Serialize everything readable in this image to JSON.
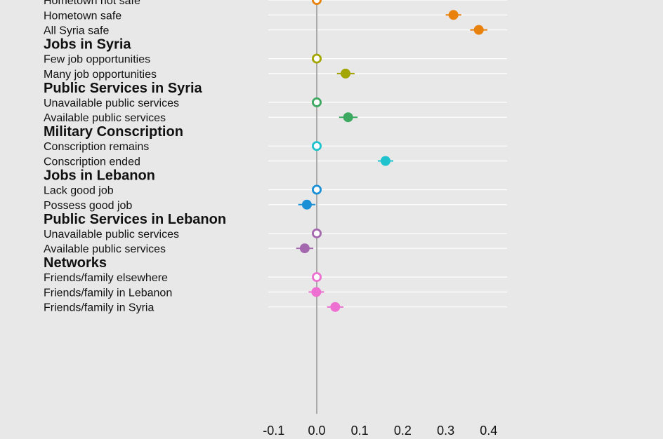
{
  "chart_data": {
    "type": "scatter",
    "title": "",
    "xlabel": "",
    "ylabel": "",
    "xlim": [
      -0.1,
      0.4
    ],
    "xticks": [
      -0.1,
      0.0,
      0.1,
      0.2,
      0.3,
      0.4
    ],
    "xtick_labels": [
      "-0.1",
      "0.0",
      "0.1",
      "0.2",
      "0.3",
      "0.4"
    ],
    "grid": true,
    "groups": [
      {
        "name": "",
        "color": "#E8820C",
        "levels": [
          {
            "label": "Hometown not safe",
            "estimate": 0.0,
            "ci": [
              0.0,
              0.0
            ],
            "baseline": true
          },
          {
            "label": "Hometown safe",
            "estimate": 0.318,
            "ci": [
              0.3,
              0.336
            ],
            "baseline": false
          },
          {
            "label": "All Syria safe",
            "estimate": 0.377,
            "ci": [
              0.357,
              0.397
            ],
            "baseline": false
          }
        ]
      },
      {
        "name": "Jobs in Syria",
        "color": "#A3A500",
        "levels": [
          {
            "label": "Few job opportunities",
            "estimate": 0.0,
            "ci": [
              0.0,
              0.0
            ],
            "baseline": true
          },
          {
            "label": "Many job opportunities",
            "estimate": 0.067,
            "ci": [
              0.047,
              0.088
            ],
            "baseline": false
          }
        ]
      },
      {
        "name": "Public Services in Syria",
        "color": "#3CA860",
        "levels": [
          {
            "label": "Unavailable public services",
            "estimate": 0.0,
            "ci": [
              0.0,
              0.0
            ],
            "baseline": true
          },
          {
            "label": "Available public services",
            "estimate": 0.073,
            "ci": [
              0.052,
              0.095
            ],
            "baseline": false
          }
        ]
      },
      {
        "name": "Military Conscription",
        "color": "#1FC3CD",
        "levels": [
          {
            "label": "Conscription remains",
            "estimate": 0.0,
            "ci": [
              0.0,
              0.0
            ],
            "baseline": true
          },
          {
            "label": "Conscription ended",
            "estimate": 0.16,
            "ci": [
              0.142,
              0.178
            ],
            "baseline": false
          }
        ]
      },
      {
        "name": "Jobs in Lebanon",
        "color": "#1C90D6",
        "levels": [
          {
            "label": "Lack good job",
            "estimate": 0.0,
            "ci": [
              0.0,
              0.0
            ],
            "baseline": true
          },
          {
            "label": "Possess good job",
            "estimate": -0.023,
            "ci": [
              -0.043,
              -0.003
            ],
            "baseline": false
          }
        ]
      },
      {
        "name": "Public Services in Lebanon",
        "color": "#A368AE",
        "levels": [
          {
            "label": "Unavailable public services",
            "estimate": 0.0,
            "ci": [
              0.0,
              0.0
            ],
            "baseline": true
          },
          {
            "label": "Available public services",
            "estimate": -0.028,
            "ci": [
              -0.048,
              -0.008
            ],
            "baseline": false
          }
        ]
      },
      {
        "name": "Networks",
        "color": "#EE6FD2",
        "levels": [
          {
            "label": "Friends/family elsewhere",
            "estimate": 0.0,
            "ci": [
              0.0,
              0.0
            ],
            "baseline": true
          },
          {
            "label": "Friends/family in Lebanon",
            "estimate": -0.001,
            "ci": [
              -0.019,
              0.017
            ],
            "baseline": false
          },
          {
            "label": "Friends/family in Syria",
            "estimate": 0.043,
            "ci": [
              0.024,
              0.062
            ],
            "baseline": false
          }
        ]
      }
    ]
  }
}
